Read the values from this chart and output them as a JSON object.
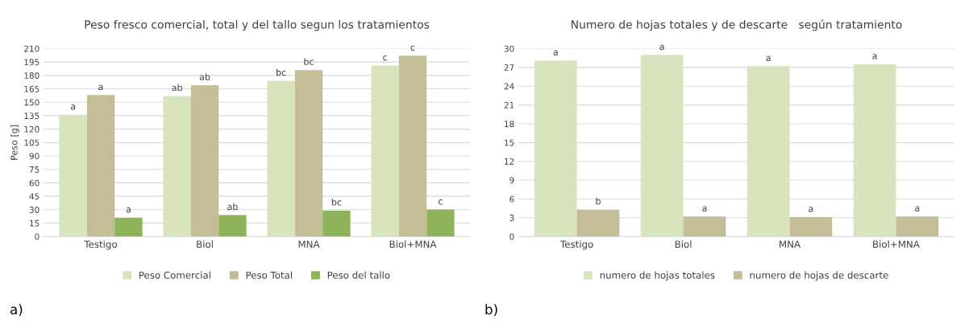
{
  "chart_data": [
    {
      "type": "bar",
      "title": "Peso fresco comercial, total y del tallo segun los tratamientos",
      "ylabel": "Peso [g]",
      "categories": [
        "Testigo",
        "Biol",
        "MNA",
        "Biol+MNA"
      ],
      "series": [
        {
          "name": "Peso Comercial",
          "color": "#d7e4bd",
          "values": [
            136,
            157,
            174,
            191
          ],
          "value_labels": [
            "a",
            "ab",
            "bc",
            "c"
          ]
        },
        {
          "name": "Peso Total",
          "color": "#c4bd97",
          "values": [
            158,
            169,
            186,
            202
          ],
          "value_labels": [
            "a",
            "ab",
            "bc",
            "c"
          ]
        },
        {
          "name": "Peso del tallo",
          "color": "#8fb35a",
          "values": [
            21,
            24,
            29,
            30
          ],
          "value_labels": [
            "a",
            "ab",
            "bc",
            "c"
          ]
        }
      ],
      "ylim": [
        0,
        210
      ],
      "yticks": [
        0,
        15,
        30,
        45,
        60,
        75,
        90,
        105,
        120,
        135,
        150,
        165,
        180,
        195,
        210
      ],
      "grid": "y",
      "legend": "bottom",
      "annotations": [
        "a)"
      ]
    },
    {
      "type": "bar",
      "title": "Numero de hojas totales y de descarte   según tratamiento",
      "categories": [
        "Testigo",
        "Biol",
        "MNA",
        "Biol+MNA"
      ],
      "series": [
        {
          "name": "numero de hojas totales",
          "color": "#d7e4bd",
          "values": [
            28.1,
            29,
            27.2,
            27.5
          ],
          "value_labels": [
            "a",
            "a",
            "a",
            "a"
          ]
        },
        {
          "name": "numero de hojas de descarte",
          "color": "#c4bd97",
          "values": [
            4.3,
            3.2,
            3.1,
            3.2
          ],
          "value_labels": [
            "b",
            "a",
            "a",
            "a"
          ]
        }
      ],
      "ylim": [
        0,
        30
      ],
      "yticks": [
        0,
        3,
        6,
        9,
        12,
        15,
        18,
        21,
        24,
        27,
        30
      ],
      "grid": "y",
      "legend": "bottom",
      "annotations": [
        "b)"
      ]
    }
  ]
}
